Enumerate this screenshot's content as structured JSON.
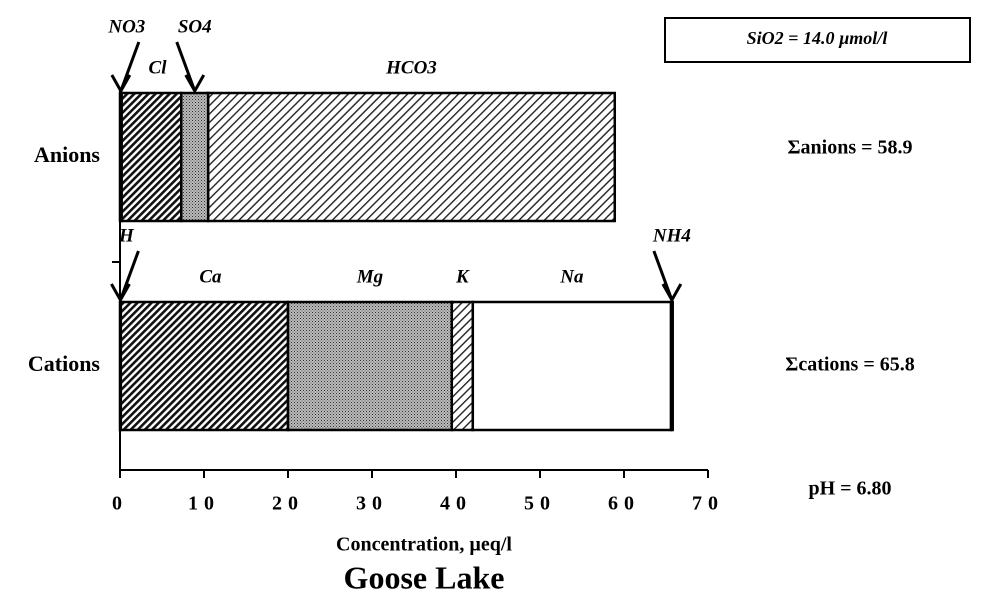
{
  "chart_data": {
    "type": "bar",
    "orientation": "horizontal",
    "stacked": true,
    "title": "Goose Lake",
    "xlabel": "Concentration, µeq/l",
    "categories": [
      "Anions",
      "Cations"
    ],
    "segments": [
      [
        {
          "name": "NO3",
          "value": 0.2,
          "pattern": "none",
          "arrow": true
        },
        {
          "name": "Cl",
          "value": 7.1,
          "pattern": "dense-hatch",
          "arrow": false
        },
        {
          "name": "SO4",
          "value": 3.2,
          "pattern": "stipple",
          "arrow": true
        },
        {
          "name": "HCO3",
          "value": 48.4,
          "pattern": "light-hatch",
          "arrow": false
        }
      ],
      [
        {
          "name": "H",
          "value": 0.1,
          "pattern": "none",
          "arrow": true
        },
        {
          "name": "Ca",
          "value": 19.9,
          "pattern": "dense-hatch",
          "arrow": false
        },
        {
          "name": "Mg",
          "value": 19.5,
          "pattern": "stipple",
          "arrow": false
        },
        {
          "name": "K",
          "value": 2.5,
          "pattern": "light-hatch",
          "arrow": false
        },
        {
          "name": "Na",
          "value": 23.6,
          "pattern": "none",
          "arrow": false
        },
        {
          "name": "NH4",
          "value": 0.2,
          "pattern": "solid",
          "arrow": true
        }
      ]
    ],
    "totals": [
      "Σanions = 58.9",
      "Σcations = 65.8"
    ],
    "ph_label": "pH = 6.80",
    "silica_label": "SiO2 = 14.0 µmol/l",
    "xlim": [
      0,
      70
    ],
    "xticks": [
      0,
      10,
      20,
      30,
      40,
      50,
      60,
      70
    ]
  }
}
